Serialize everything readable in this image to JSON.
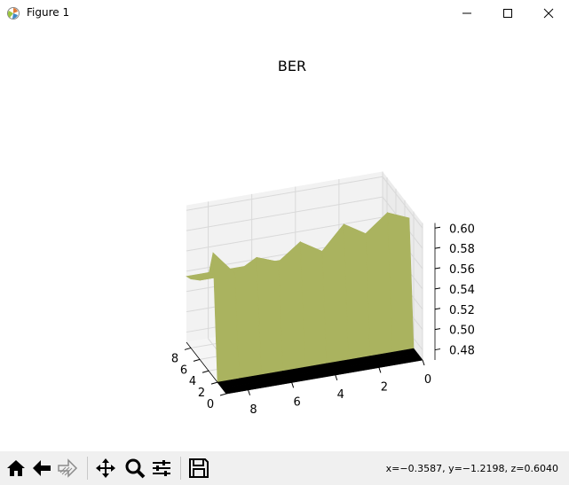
{
  "window": {
    "title": "Figure 1"
  },
  "status": {
    "coords": "x=−0.3587, y=−1.2198, z=0.6040"
  },
  "toolbar": {
    "buttons": [
      "home-icon",
      "back-icon",
      "forward-icon",
      "pan-icon",
      "zoom-icon",
      "configure-subplots-icon",
      "save-icon"
    ]
  },
  "colors": {
    "surface": "#aab35f",
    "surface_low": "#000000",
    "pane": "#f2f2f2",
    "grid": "#d9d9d9"
  },
  "chart_data": {
    "type": "surface3d",
    "title": "BER",
    "x_ticks": [
      "0",
      "2",
      "4",
      "6",
      "8"
    ],
    "y_ticks": [
      "0",
      "2",
      "4",
      "6",
      "8"
    ],
    "z_ticks": [
      "0.48",
      "0.50",
      "0.52",
      "0.54",
      "0.56",
      "0.58",
      "0.60"
    ],
    "xlim": [
      0,
      9
    ],
    "ylim": [
      0,
      9
    ],
    "zlim": [
      0.47,
      0.605
    ],
    "x": [
      0,
      1,
      2,
      3,
      4,
      5,
      6,
      7,
      8,
      9
    ],
    "y": [
      0,
      1,
      2,
      3,
      4,
      5,
      6,
      7,
      8,
      9
    ],
    "z": [
      [
        0.47,
        0.47,
        0.47,
        0.47,
        0.47,
        0.47,
        0.47,
        0.47,
        0.47,
        0.47
      ],
      [
        0.47,
        0.47,
        0.47,
        0.47,
        0.47,
        0.47,
        0.47,
        0.47,
        0.47,
        0.47
      ],
      [
        0.47,
        0.47,
        0.47,
        0.47,
        0.47,
        0.47,
        0.47,
        0.47,
        0.47,
        0.47
      ],
      [
        0.593,
        0.602,
        0.585,
        0.598,
        0.575,
        0.588,
        0.572,
        0.58,
        0.568,
        0.592
      ],
      [
        0.565,
        0.565,
        0.565,
        0.565,
        0.565,
        0.565,
        0.565,
        0.565,
        0.565,
        0.565
      ],
      [
        0.555,
        0.555,
        0.555,
        0.555,
        0.555,
        0.555,
        0.555,
        0.555,
        0.555,
        0.555
      ],
      [
        0.548,
        0.548,
        0.548,
        0.548,
        0.548,
        0.548,
        0.548,
        0.548,
        0.548,
        0.548
      ],
      [
        0.543,
        0.543,
        0.543,
        0.543,
        0.543,
        0.543,
        0.543,
        0.543,
        0.543,
        0.543
      ],
      [
        0.538,
        0.538,
        0.538,
        0.538,
        0.538,
        0.538,
        0.538,
        0.538,
        0.538,
        0.538
      ],
      [
        0.535,
        0.535,
        0.535,
        0.535,
        0.535,
        0.535,
        0.535,
        0.535,
        0.535,
        0.535
      ]
    ],
    "grid": true
  }
}
